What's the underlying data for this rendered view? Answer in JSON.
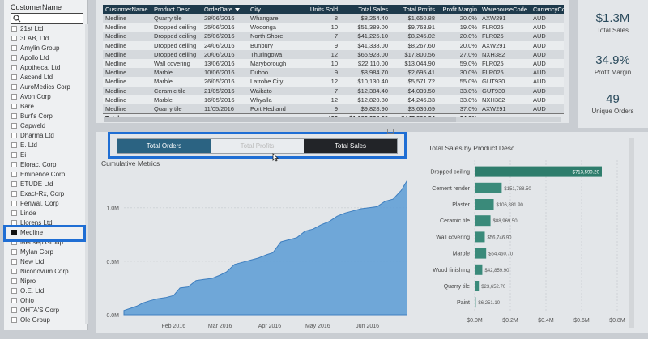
{
  "slicer": {
    "title": "CustomerName",
    "search_icon": "search-icon",
    "items": [
      {
        "label": "21st Ltd",
        "selected": false
      },
      {
        "label": "3LAB, Ltd",
        "selected": false
      },
      {
        "label": "Amylin Group",
        "selected": false
      },
      {
        "label": "Apollo Ltd",
        "selected": false
      },
      {
        "label": "Apotheca, Ltd",
        "selected": false
      },
      {
        "label": "Ascend Ltd",
        "selected": false
      },
      {
        "label": "AuroMedics Corp",
        "selected": false
      },
      {
        "label": "Avon Corp",
        "selected": false
      },
      {
        "label": "Bare",
        "selected": false
      },
      {
        "label": "Burt's Corp",
        "selected": false
      },
      {
        "label": "Capweld",
        "selected": false
      },
      {
        "label": "Dharma Ltd",
        "selected": false
      },
      {
        "label": "E. Ltd",
        "selected": false
      },
      {
        "label": "Ei",
        "selected": false
      },
      {
        "label": "Elorac, Corp",
        "selected": false
      },
      {
        "label": "Eminence Corp",
        "selected": false
      },
      {
        "label": "ETUDE Ltd",
        "selected": false
      },
      {
        "label": "Exact-Rx, Corp",
        "selected": false
      },
      {
        "label": "Fenwal, Corp",
        "selected": false
      },
      {
        "label": "Linde",
        "selected": false
      },
      {
        "label": "Llorens Ltd",
        "selected": false
      },
      {
        "label": "Medline",
        "selected": true
      },
      {
        "label": "Medsep Group",
        "selected": false
      },
      {
        "label": "Mylan Corp",
        "selected": false
      },
      {
        "label": "New Ltd",
        "selected": false
      },
      {
        "label": "Niconovum Corp",
        "selected": false
      },
      {
        "label": "Nipro",
        "selected": false
      },
      {
        "label": "O.E. Ltd",
        "selected": false
      },
      {
        "label": "Ohio",
        "selected": false
      },
      {
        "label": "OHTA'S Corp",
        "selected": false
      },
      {
        "label": "Ole Group",
        "selected": false
      }
    ]
  },
  "table": {
    "columns": [
      "CustomerName",
      "Product Desc.",
      "OrderDate",
      "City",
      "Units Sold",
      "Total Sales",
      "Total Profits",
      "Profit Margin",
      "WarehouseCode",
      "CurrencyCo"
    ],
    "rows": [
      [
        "Medline",
        "Quarry tile",
        "28/06/2016",
        "Whangarei",
        "8",
        "$8,254.40",
        "$1,650.88",
        "20.0%",
        "AXW291",
        "AUD"
      ],
      [
        "Medline",
        "Dropped ceiling",
        "25/06/2016",
        "Wodonga",
        "10",
        "$51,389.00",
        "$9,763.91",
        "19.0%",
        "FLR025",
        "AUD"
      ],
      [
        "Medline",
        "Dropped ceiling",
        "25/06/2016",
        "North Shore",
        "7",
        "$41,225.10",
        "$8,245.02",
        "20.0%",
        "FLR025",
        "AUD"
      ],
      [
        "Medline",
        "Dropped ceiling",
        "24/06/2016",
        "Bunbury",
        "9",
        "$41,338.00",
        "$8,267.60",
        "20.0%",
        "AXW291",
        "AUD"
      ],
      [
        "Medline",
        "Dropped ceiling",
        "20/06/2016",
        "Thuringowa",
        "12",
        "$65,928.00",
        "$17,800.56",
        "27.0%",
        "NXH382",
        "AUD"
      ],
      [
        "Medline",
        "Wall covering",
        "13/06/2016",
        "Maryborough",
        "10",
        "$22,110.00",
        "$13,044.90",
        "59.0%",
        "FLR025",
        "AUD"
      ],
      [
        "Medline",
        "Marble",
        "10/06/2016",
        "Dubbo",
        "9",
        "$8,984.70",
        "$2,695.41",
        "30.0%",
        "FLR025",
        "AUD"
      ],
      [
        "Medline",
        "Marble",
        "26/05/2016",
        "Latrobe City",
        "12",
        "$10,130.40",
        "$5,571.72",
        "55.0%",
        "GUT930",
        "AUD"
      ],
      [
        "Medline",
        "Ceramic tile",
        "21/05/2016",
        "Waikato",
        "7",
        "$12,384.40",
        "$4,039.50",
        "33.0%",
        "GUT930",
        "AUD"
      ],
      [
        "Medline",
        "Marble",
        "16/05/2016",
        "Whyalla",
        "12",
        "$12,820.80",
        "$4,246.33",
        "33.0%",
        "NXH382",
        "AUD"
      ],
      [
        "Medline",
        "Quarry tile",
        "11/05/2016",
        "Port Hedland",
        "9",
        "$9,828.90",
        "$3,636.69",
        "37.0%",
        "AXW291",
        "AUD"
      ]
    ],
    "total": [
      "Total",
      "",
      "",
      "",
      "433",
      "$1,283,224.20",
      "$447,808.24",
      "34.9%",
      "",
      ""
    ]
  },
  "kpis": {
    "total_sales": {
      "value": "$1.3M",
      "label": "Total Sales"
    },
    "profit_margin": {
      "value": "34.9%",
      "label": "Profit Margin"
    },
    "unique_orders": {
      "value": "49",
      "label": "Unique Orders"
    }
  },
  "toggle": {
    "total_orders": "Total Orders",
    "total_profits": "Total Profits",
    "total_sales": "Total Sales"
  },
  "chart_data": [
    {
      "type": "area",
      "title": "Cumulative Metrics",
      "xlabel": "",
      "ylabel": "",
      "x_ticks": [
        "Feb 2016",
        "Mar 2016",
        "Apr 2016",
        "May 2016",
        "Jun 2016"
      ],
      "y_ticks": [
        "0.0M",
        "0.5M",
        "1.0M"
      ],
      "ylim": [
        0,
        1300000
      ],
      "xlim": [
        "2016-01-01",
        "2016-06-30"
      ],
      "grid": true,
      "color": "#5b9bd5",
      "series": [
        {
          "x": [
            "2016-01-01",
            "2016-01-05",
            "2016-01-09",
            "2016-01-13",
            "2016-01-17",
            "2016-01-22",
            "2016-01-27",
            "2016-02-01",
            "2016-02-05",
            "2016-02-10",
            "2016-02-15",
            "2016-02-20",
            "2016-02-25",
            "2016-03-01",
            "2016-03-05",
            "2016-03-10",
            "2016-03-15",
            "2016-03-20",
            "2016-03-25",
            "2016-03-30",
            "2016-04-03",
            "2016-04-08",
            "2016-04-13",
            "2016-04-18",
            "2016-04-23",
            "2016-04-28",
            "2016-05-03",
            "2016-05-08",
            "2016-05-13",
            "2016-05-18",
            "2016-05-23",
            "2016-05-28",
            "2016-06-02",
            "2016-06-07",
            "2016-06-12",
            "2016-06-17",
            "2016-06-22",
            "2016-06-26",
            "2016-06-30"
          ],
          "values": [
            40000,
            60000,
            80000,
            110000,
            130000,
            150000,
            160000,
            180000,
            250000,
            260000,
            320000,
            330000,
            340000,
            370000,
            400000,
            470000,
            490000,
            510000,
            530000,
            560000,
            580000,
            680000,
            700000,
            720000,
            780000,
            800000,
            840000,
            870000,
            920000,
            950000,
            970000,
            990000,
            1000000,
            1010000,
            1060000,
            1080000,
            1160000,
            1260000,
            1283224
          ]
        }
      ]
    },
    {
      "type": "bar",
      "orientation": "horizontal",
      "title": "Total Sales by Product Desc.",
      "categories": [
        "Dropped ceiling",
        "Cement render",
        "Plaster",
        "Ceramic tile",
        "Wall covering",
        "Marble",
        "Wood finishing",
        "Quarry tile",
        "Paint"
      ],
      "values": [
        713590.2,
        151788.5,
        106881.9,
        88969.5,
        56746.9,
        64460.7,
        42859.9,
        23652.7,
        6251.1
      ],
      "data_labels": [
        "$713,590.20",
        "$151,788.50",
        "$106,881.90",
        "$88,969.50",
        "$56,746.90",
        "$64,460.70",
        "$42,859.90",
        "$23,652.70",
        "$6,251.10"
      ],
      "x_ticks": [
        "$0.0M",
        "$0.2M",
        "$0.4M",
        "$0.6M",
        "$0.8M"
      ],
      "xlim": [
        0,
        800000
      ],
      "color": "#3a8a7a",
      "highlight_color": "#2e7d6c"
    }
  ]
}
